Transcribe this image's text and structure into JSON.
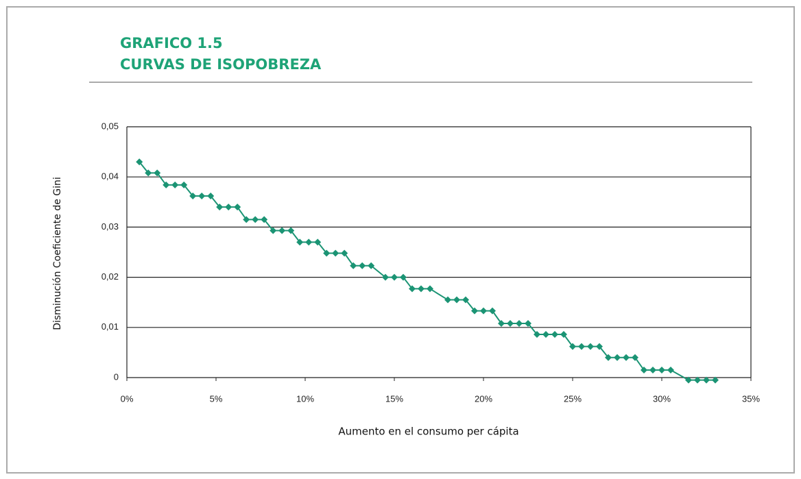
{
  "chart_data": {
    "type": "line",
    "title": "GRAFICO 1.5",
    "subtitle": "CURVAS DE ISOPOBREZA",
    "xlabel": "Aumento en el consumo per cápita",
    "ylabel": "Disminución Coeficiente de Gini",
    "x": [
      0.7,
      1.2,
      1.7,
      2.2,
      2.7,
      3.2,
      3.7,
      4.2,
      4.7,
      5.2,
      5.7,
      6.2,
      6.7,
      7.2,
      7.7,
      8.2,
      8.7,
      9.2,
      9.7,
      10.2,
      10.7,
      11.2,
      11.7,
      12.2,
      12.7,
      13.2,
      13.7,
      14.5,
      15.0,
      15.5,
      16.0,
      16.5,
      17.0,
      18.0,
      18.5,
      19.0,
      19.5,
      20.0,
      20.5,
      21.0,
      21.5,
      22.0,
      22.5,
      23.0,
      23.5,
      24.0,
      24.5,
      25.0,
      25.5,
      26.0,
      26.5,
      27.0,
      27.5,
      28.0,
      28.5,
      29.0,
      29.5,
      30.0,
      30.5,
      31.5,
      32.0,
      32.5,
      33.0
    ],
    "series": [
      {
        "color": "#1b9474",
        "values": [
          0.043,
          0.0408,
          0.0408,
          0.0384,
          0.0384,
          0.0384,
          0.0362,
          0.0362,
          0.0362,
          0.034,
          0.034,
          0.034,
          0.0315,
          0.0315,
          0.0315,
          0.0293,
          0.0293,
          0.0293,
          0.027,
          0.027,
          0.027,
          0.0248,
          0.0248,
          0.0248,
          0.0223,
          0.0223,
          0.0223,
          0.02,
          0.02,
          0.02,
          0.0177,
          0.0177,
          0.0177,
          0.0155,
          0.0155,
          0.0155,
          0.0133,
          0.0133,
          0.0133,
          0.0108,
          0.0108,
          0.0108,
          0.0108,
          0.0086,
          0.0086,
          0.0086,
          0.0086,
          0.0062,
          0.0062,
          0.0062,
          0.0062,
          0.004,
          0.004,
          0.004,
          0.004,
          0.0015,
          0.0015,
          0.0015,
          0.0015,
          -0.0005,
          -0.0005,
          -0.0005,
          -0.0005
        ]
      }
    ],
    "xlim": [
      0,
      35
    ],
    "xticks": [
      {
        "value": 0,
        "label": "0%"
      },
      {
        "value": 5,
        "label": "5%"
      },
      {
        "value": 10,
        "label": "10%"
      },
      {
        "value": 15,
        "label": "15%"
      },
      {
        "value": 20,
        "label": "20%"
      },
      {
        "value": 25,
        "label": "25%"
      },
      {
        "value": 30,
        "label": "30%"
      },
      {
        "value": 35,
        "label": "35%"
      }
    ],
    "ylim": [
      0,
      0.05
    ],
    "yticks": [
      0,
      {
        "value": 0.01,
        "label": "0,01"
      },
      {
        "value": 0.02,
        "label": "0,02"
      },
      {
        "value": 0.03,
        "label": "0,03"
      },
      {
        "value": 0.04,
        "label": "0,04"
      },
      {
        "value": 0.05,
        "label": "0,05"
      }
    ],
    "grid": true
  }
}
